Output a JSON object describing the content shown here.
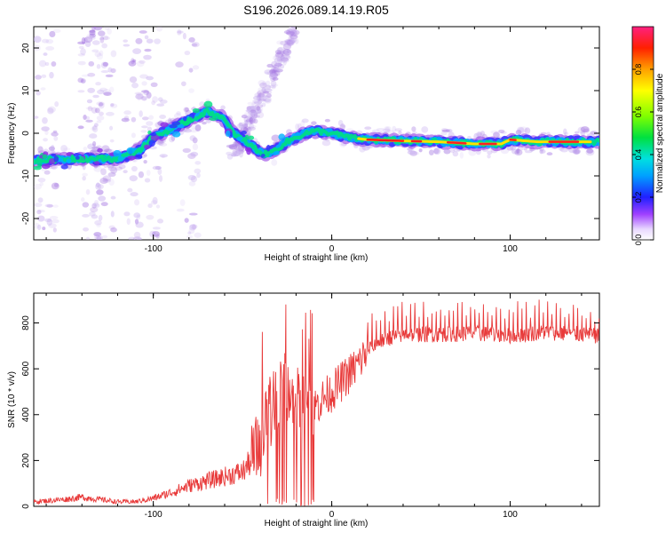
{
  "title": "S196.2026.089.14.19.R05",
  "chart_data": [
    {
      "type": "heatmap",
      "xlabel": "Height of straight line (km)",
      "ylabel": "Frequency (Hz)",
      "xlim": [
        -167,
        150
      ],
      "ylim": [
        -25,
        25
      ],
      "xticks": [
        -100,
        0,
        100
      ],
      "yticks": [
        -20,
        -10,
        0,
        10,
        20
      ],
      "colorbar": {
        "label": "Normalized spectral amplitude",
        "range": [
          0,
          1
        ],
        "ticks": [
          "0.0",
          "0.2",
          "0.4",
          "0.6",
          "0.8"
        ]
      },
      "trace": [
        [
          -167,
          -6.5
        ],
        [
          -150,
          -6
        ],
        [
          -135,
          -6
        ],
        [
          -120,
          -6
        ],
        [
          -108,
          -4
        ],
        [
          -100,
          -1
        ],
        [
          -90,
          1
        ],
        [
          -80,
          3
        ],
        [
          -70,
          5
        ],
        [
          -62,
          4
        ],
        [
          -55,
          0
        ],
        [
          -45,
          -3
        ],
        [
          -38,
          -5
        ],
        [
          -32,
          -4
        ],
        [
          -25,
          -2
        ],
        [
          -15,
          0
        ],
        [
          -8,
          0.5
        ],
        [
          0,
          0
        ],
        [
          10,
          -1
        ],
        [
          20,
          -1.5
        ],
        [
          40,
          -1.8
        ],
        [
          60,
          -2
        ],
        [
          80,
          -2.5
        ],
        [
          95,
          -2.5
        ],
        [
          100,
          -1.5
        ],
        [
          115,
          -2
        ],
        [
          130,
          -2
        ],
        [
          150,
          -2
        ]
      ]
    },
    {
      "type": "line",
      "xlabel": "Height of straight line (km)",
      "ylabel": "SNR (10 * v/v)",
      "xlim": [
        -167,
        150
      ],
      "ylim": [
        0,
        930
      ],
      "xticks": [
        -100,
        0,
        100
      ],
      "yticks": [
        0,
        200,
        400,
        600,
        800
      ],
      "series": [
        {
          "name": "SNR",
          "color": "#e83a3a",
          "x": [
            -167,
            -150,
            -140,
            -130,
            -120,
            -110,
            -100,
            -90,
            -80,
            -70,
            -60,
            -50,
            -45,
            -40,
            -35,
            -30,
            -25,
            -20,
            -15,
            -10,
            -5,
            0,
            5,
            10,
            15,
            20,
            30,
            40,
            60,
            80,
            100,
            120,
            140,
            150
          ],
          "y": [
            20,
            30,
            40,
            30,
            20,
            20,
            35,
            60,
            90,
            110,
            130,
            150,
            200,
            280,
            400,
            500,
            520,
            450,
            480,
            430,
            470,
            500,
            540,
            580,
            620,
            680,
            730,
            750,
            750,
            755,
            745,
            760,
            750,
            740
          ]
        }
      ]
    }
  ]
}
